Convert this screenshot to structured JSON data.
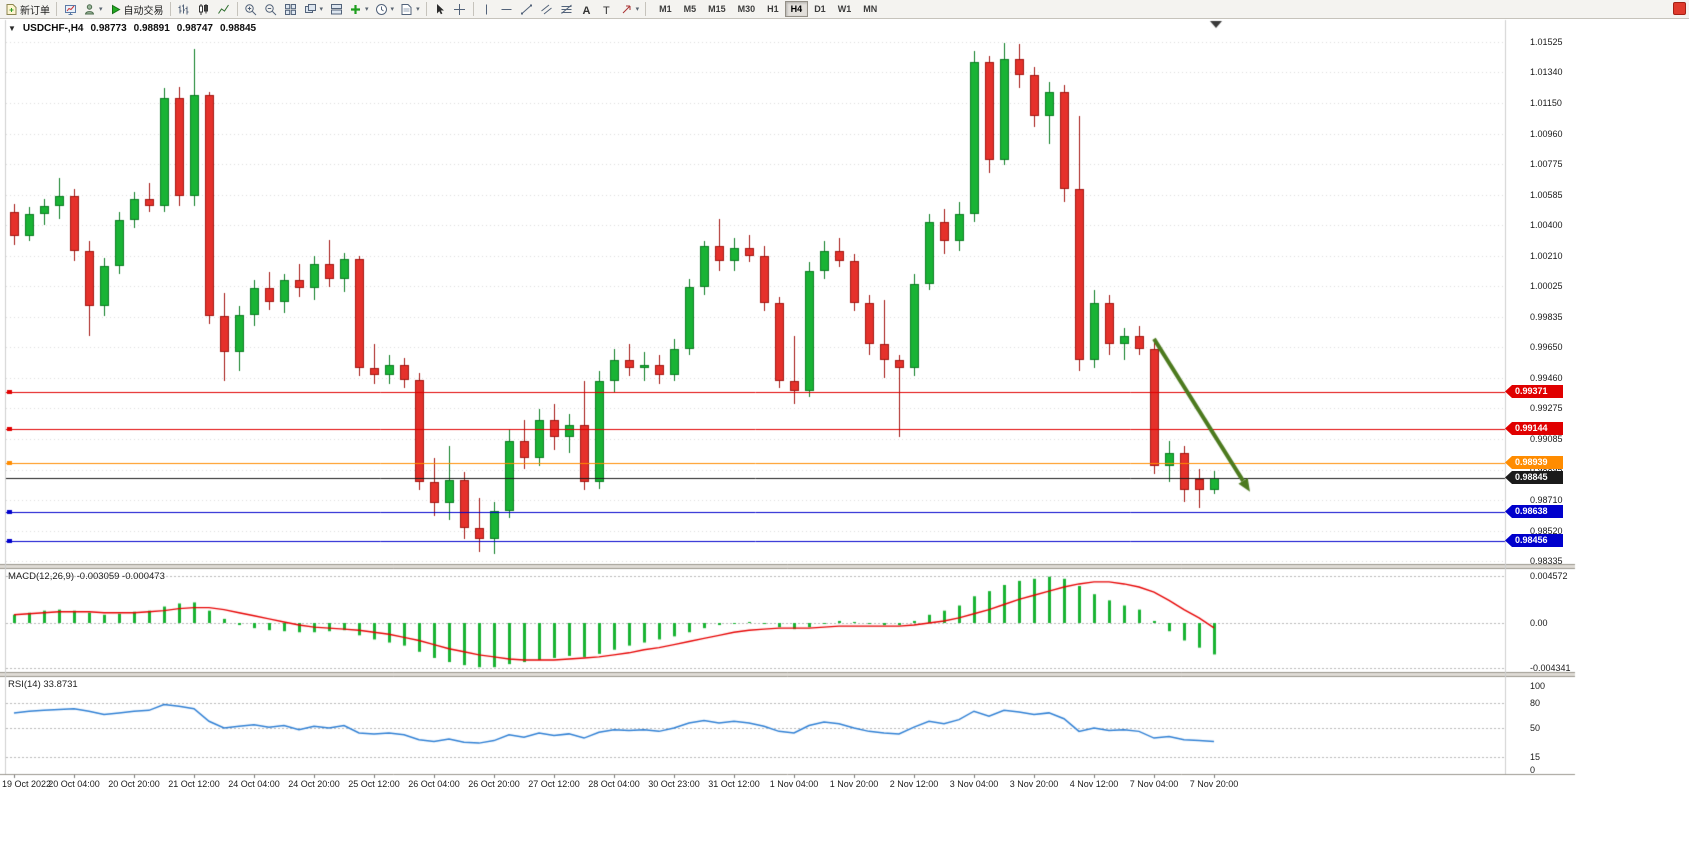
{
  "toolbar": {
    "new_order_label": "新订单",
    "auto_trading_label": "自动交易",
    "timeframes": [
      "M1",
      "M5",
      "M15",
      "M30",
      "H1",
      "H4",
      "D1",
      "W1",
      "MN"
    ],
    "active_timeframe": "H4",
    "icons": [
      "new-order-icon",
      "new-chart-icon",
      "profiles-icon",
      "auto-trading-icon",
      "bar-chart-icon",
      "candlestick-chart-icon",
      "line-chart-icon",
      "zoom-in-icon",
      "zoom-out-icon",
      "tile-windows-icon",
      "cascade-windows-icon",
      "arrange-windows-icon",
      "indicators-icon",
      "periods-icon",
      "templates-icon",
      "cursor-icon",
      "crosshair-icon",
      "vertical-line-icon",
      "horizontal-line-icon",
      "trendline-icon",
      "channel-icon",
      "fibonacci-icon",
      "text-icon",
      "text-label-icon",
      "arrows-icon"
    ]
  },
  "chart_header": {
    "symbol": "USDCHF-,H4",
    "open": "0.98773",
    "high": "0.98891",
    "low": "0.98747",
    "close": "0.98845"
  },
  "chart_data": [
    {
      "type": "candlestick",
      "title": "USDCHF- H4",
      "up_color": "#19b335",
      "up_border": "#0b7d22",
      "down_color": "#e5312b",
      "down_border": "#a31510",
      "ylim": [
        0.98335,
        1.01525
      ],
      "grid": true,
      "y_ticks": [
        1.01525,
        1.0134,
        1.0115,
        1.0096,
        1.00775,
        1.00585,
        1.004,
        1.0021,
        1.00025,
        0.99835,
        0.9965,
        0.9946,
        0.99275,
        0.99085,
        0.98895,
        0.9871,
        0.9852,
        0.98335
      ],
      "price_lines": [
        {
          "value": 0.99371,
          "label": "0.99371",
          "color": "#e00000"
        },
        {
          "value": 0.99144,
          "label": "0.99144",
          "color": "#e00000"
        },
        {
          "value": 0.98939,
          "label": "0.98939",
          "color": "#ff8c00"
        },
        {
          "value": 0.98845,
          "label": "0.98845",
          "color": "#1a1a1a",
          "role": "bid"
        },
        {
          "value": 0.98638,
          "label": "0.98638",
          "color": "#0000cc"
        },
        {
          "value": 0.98456,
          "label": "0.98456",
          "color": "#0000cc"
        }
      ],
      "arrow": {
        "from": {
          "index": 76,
          "price": 0.997
        },
        "to": {
          "index": 82.4,
          "price": 0.9876
        },
        "color": "#4c7a1e"
      },
      "x_labels": [
        "19 Oct 2022",
        "20 Oct 04:00",
        "20 Oct 20:00",
        "21 Oct 12:00",
        "24 Oct 04:00",
        "24 Oct 20:00",
        "25 Oct 12:00",
        "26 Oct 04:00",
        "26 Oct 20:00",
        "27 Oct 12:00",
        "28 Oct 04:00",
        "30 Oct 23:00",
        "31 Oct 12:00",
        "1 Nov 04:00",
        "1 Nov 20:00",
        "2 Nov 12:00",
        "3 Nov 04:00",
        "3 Nov 20:00",
        "4 Nov 12:00",
        "7 Nov 04:00",
        "7 Nov 20:00"
      ],
      "candles": [
        [
          1.0048,
          1.0053,
          1.0028,
          1.0033
        ],
        [
          1.0033,
          1.0051,
          1.003,
          1.0047
        ],
        [
          1.0047,
          1.0056,
          1.004,
          1.0052
        ],
        [
          1.0052,
          1.0069,
          1.0044,
          1.0058
        ],
        [
          1.0058,
          1.0062,
          1.0018,
          1.0024
        ],
        [
          1.0024,
          1.003,
          0.9972,
          0.999
        ],
        [
          0.999,
          1.002,
          0.9984,
          1.0015
        ],
        [
          1.0015,
          1.0048,
          1.001,
          1.0043
        ],
        [
          1.0043,
          1.006,
          1.0038,
          1.0056
        ],
        [
          1.0056,
          1.0066,
          1.0048,
          1.0052
        ],
        [
          1.0052,
          1.0124,
          1.0048,
          1.0118
        ],
        [
          1.0118,
          1.0125,
          1.0052,
          1.0058
        ],
        [
          1.0058,
          1.0148,
          1.0052,
          1.012
        ],
        [
          1.012,
          1.0122,
          0.9979,
          0.9984
        ],
        [
          0.9984,
          0.9998,
          0.9944,
          0.9962
        ],
        [
          0.9962,
          0.999,
          0.995,
          0.9985
        ],
        [
          0.9985,
          1.0006,
          0.9978,
          1.0001
        ],
        [
          1.0001,
          1.0011,
          0.9988,
          0.9993
        ],
        [
          0.9993,
          1.001,
          0.9986,
          1.0006
        ],
        [
          1.0006,
          1.0016,
          0.9996,
          1.0001
        ],
        [
          1.0001,
          1.0021,
          0.9994,
          1.0016
        ],
        [
          1.0016,
          1.0031,
          1.0002,
          1.0007
        ],
        [
          1.0007,
          1.0023,
          0.9999,
          1.0019
        ],
        [
          1.0019,
          1.0021,
          0.9947,
          0.9952
        ],
        [
          0.9952,
          0.9967,
          0.9942,
          0.9948
        ],
        [
          0.9948,
          0.996,
          0.9942,
          0.9954
        ],
        [
          0.9954,
          0.9958,
          0.994,
          0.9945
        ],
        [
          0.9945,
          0.9949,
          0.9877,
          0.9882
        ],
        [
          0.9882,
          0.9897,
          0.9861,
          0.9869
        ],
        [
          0.9869,
          0.9904,
          0.9859,
          0.9883
        ],
        [
          0.9883,
          0.9888,
          0.9847,
          0.9854
        ],
        [
          0.9854,
          0.9872,
          0.9839,
          0.9847
        ],
        [
          0.9847,
          0.987,
          0.9838,
          0.9864
        ],
        [
          0.9864,
          0.9914,
          0.986,
          0.9907
        ],
        [
          0.9907,
          0.992,
          0.989,
          0.9897
        ],
        [
          0.9897,
          0.9927,
          0.9892,
          0.992
        ],
        [
          0.992,
          0.993,
          0.9902,
          0.991
        ],
        [
          0.991,
          0.9924,
          0.99,
          0.9917
        ],
        [
          0.9917,
          0.9944,
          0.9877,
          0.9882
        ],
        [
          0.9882,
          0.995,
          0.9878,
          0.9944
        ],
        [
          0.9944,
          0.9964,
          0.9937,
          0.9957
        ],
        [
          0.9957,
          0.9967,
          0.9947,
          0.9952
        ],
        [
          0.9952,
          0.9962,
          0.9944,
          0.9954
        ],
        [
          0.9954,
          0.996,
          0.9942,
          0.9948
        ],
        [
          0.9948,
          0.997,
          0.9944,
          0.9964
        ],
        [
          0.9964,
          1.0007,
          0.996,
          1.0002
        ],
        [
          1.0002,
          1.003,
          0.9997,
          1.0027
        ],
        [
          1.0027,
          1.0044,
          1.0012,
          1.0018
        ],
        [
          1.0018,
          1.0032,
          1.0012,
          1.0026
        ],
        [
          1.0026,
          1.0034,
          1.0017,
          1.0021
        ],
        [
          1.0021,
          1.0027,
          0.9987,
          0.9992
        ],
        [
          0.9992,
          0.9996,
          0.994,
          0.9944
        ],
        [
          0.9944,
          0.9972,
          0.993,
          0.9938
        ],
        [
          0.9938,
          1.0017,
          0.9934,
          1.0012
        ],
        [
          1.0012,
          1.003,
          1.0007,
          1.0024
        ],
        [
          1.0024,
          1.0032,
          1.0014,
          1.0018
        ],
        [
          1.0018,
          1.0022,
          0.9987,
          0.9992
        ],
        [
          0.9992,
          0.9997,
          0.996,
          0.9967
        ],
        [
          0.9967,
          0.9994,
          0.9946,
          0.9957
        ],
        [
          0.9957,
          0.996,
          0.991,
          0.9952
        ],
        [
          0.9952,
          1.001,
          0.9947,
          1.0004
        ],
        [
          1.0004,
          1.0047,
          1.0,
          1.0042
        ],
        [
          1.0042,
          1.005,
          1.0022,
          1.003
        ],
        [
          1.003,
          1.0054,
          1.0024,
          1.0047
        ],
        [
          1.0047,
          1.0147,
          1.0042,
          1.014
        ],
        [
          1.014,
          1.0144,
          1.0072,
          1.008
        ],
        [
          1.008,
          1.0152,
          1.0077,
          1.0142
        ],
        [
          1.0142,
          1.0151,
          1.0124,
          1.0132
        ],
        [
          1.0132,
          1.0137,
          1.01,
          1.0107
        ],
        [
          1.0107,
          1.0128,
          1.009,
          1.0122
        ],
        [
          1.0122,
          1.0126,
          1.0054,
          1.0062
        ],
        [
          1.0062,
          1.0107,
          0.995,
          0.9957
        ],
        [
          0.9957,
          1.0,
          0.9952,
          0.9992
        ],
        [
          0.9992,
          0.9997,
          0.996,
          0.9967
        ],
        [
          0.9967,
          0.9977,
          0.9957,
          0.9972
        ],
        [
          0.9972,
          0.9978,
          0.996,
          0.9964
        ],
        [
          0.9964,
          0.9968,
          0.9887,
          0.9892
        ],
        [
          0.9892,
          0.9907,
          0.9882,
          0.99
        ],
        [
          0.99,
          0.9904,
          0.987,
          0.9877
        ],
        [
          0.9884,
          0.989,
          0.9866,
          0.98773
        ],
        [
          0.98773,
          0.98891,
          0.98747,
          0.98845
        ]
      ]
    },
    {
      "type": "bar",
      "name": "MACD",
      "label": "MACD(12,26,9) -0.003059 -0.000473",
      "main_value": -0.003059,
      "signal_value": -0.000473,
      "histogram_color": "#18b332",
      "signal_color": "#e60000",
      "y_ticks": [
        {
          "value": 0.004572,
          "label": "0.004572"
        },
        {
          "value": 0,
          "label": "0.00"
        },
        {
          "value": -0.004341,
          "label": "-0.004341"
        }
      ],
      "values": [
        0.0008,
        0.001,
        0.0012,
        0.0013,
        0.0012,
        0.001,
        0.0008,
        0.0009,
        0.0011,
        0.0012,
        0.0016,
        0.0019,
        0.002,
        0.0012,
        0.0004,
        -0.0002,
        -0.0005,
        -0.0007,
        -0.0008,
        -0.0009,
        -0.0009,
        -0.0008,
        -0.0007,
        -0.0012,
        -0.0016,
        -0.0019,
        -0.0022,
        -0.0028,
        -0.0034,
        -0.0038,
        -0.0041,
        -0.0043,
        -0.0043,
        -0.004,
        -0.0038,
        -0.0036,
        -0.0034,
        -0.0032,
        -0.0033,
        -0.003,
        -0.0026,
        -0.0022,
        -0.0019,
        -0.0016,
        -0.0013,
        -0.0009,
        -0.0005,
        -0.0002,
        0.0,
        0.0001,
        -0.0001,
        -0.0004,
        -0.0006,
        -0.0004,
        0.0,
        0.0002,
        0.0001,
        -0.0001,
        -0.0002,
        -0.0002,
        0.0002,
        0.0008,
        0.0012,
        0.0017,
        0.0026,
        0.0031,
        0.0037,
        0.0041,
        0.0043,
        0.0045,
        0.0043,
        0.0036,
        0.0028,
        0.0022,
        0.0017,
        0.0013,
        0.0002,
        -0.0008,
        -0.0017,
        -0.0024,
        -0.003059
      ],
      "signal": [
        0.0008,
        0.0009,
        0.001,
        0.0011,
        0.0011,
        0.0011,
        0.001,
        0.001,
        0.001,
        0.0011,
        0.0012,
        0.0014,
        0.0015,
        0.0015,
        0.0013,
        0.001,
        0.0007,
        0.0004,
        0.0001,
        -0.0002,
        -0.0004,
        -0.0005,
        -0.0006,
        -0.0007,
        -0.0009,
        -0.0011,
        -0.0014,
        -0.0017,
        -0.0021,
        -0.0025,
        -0.0028,
        -0.0031,
        -0.0033,
        -0.0035,
        -0.0036,
        -0.0036,
        -0.0036,
        -0.0035,
        -0.0034,
        -0.0033,
        -0.0031,
        -0.0029,
        -0.0026,
        -0.0024,
        -0.0021,
        -0.0018,
        -0.0015,
        -0.0012,
        -0.0009,
        -0.0007,
        -0.0006,
        -0.0005,
        -0.0005,
        -0.0005,
        -0.0004,
        -0.0003,
        -0.0003,
        -0.0003,
        -0.0003,
        -0.0003,
        -0.0002,
        0.0,
        0.0002,
        0.0005,
        0.0009,
        0.0013,
        0.0018,
        0.0023,
        0.0027,
        0.0031,
        0.0035,
        0.0038,
        0.004,
        0.004,
        0.0038,
        0.0035,
        0.003,
        0.0022,
        0.0013,
        0.0005,
        -0.000473
      ]
    },
    {
      "type": "line",
      "name": "RSI",
      "label": "RSI(14) 33.8731",
      "last_value": 33.8731,
      "line_color": "#2e7fd4",
      "ylim": [
        0,
        100
      ],
      "levels": [
        80,
        50,
        15
      ],
      "y_ticks": [
        {
          "value": 100,
          "label": "100"
        },
        {
          "value": 80,
          "label": "80"
        },
        {
          "value": 50,
          "label": "50"
        },
        {
          "value": 15,
          "label": "15"
        },
        {
          "value": 0,
          "label": "0"
        }
      ],
      "values": [
        68,
        70,
        71,
        72,
        73,
        70,
        66,
        68,
        70,
        71,
        78,
        76,
        73,
        58,
        50,
        52,
        54,
        51,
        53,
        48,
        52,
        50,
        53,
        44,
        43,
        44,
        42,
        36,
        34,
        37,
        33,
        32,
        35,
        42,
        39,
        44,
        41,
        43,
        38,
        45,
        48,
        47,
        48,
        46,
        50,
        56,
        59,
        56,
        58,
        56,
        52,
        46,
        44,
        53,
        57,
        55,
        50,
        46,
        44,
        43,
        51,
        58,
        55,
        60,
        70,
        64,
        71,
        69,
        66,
        68,
        61,
        46,
        50,
        47,
        48,
        46,
        38,
        40,
        36,
        35,
        33.8731
      ]
    }
  ]
}
